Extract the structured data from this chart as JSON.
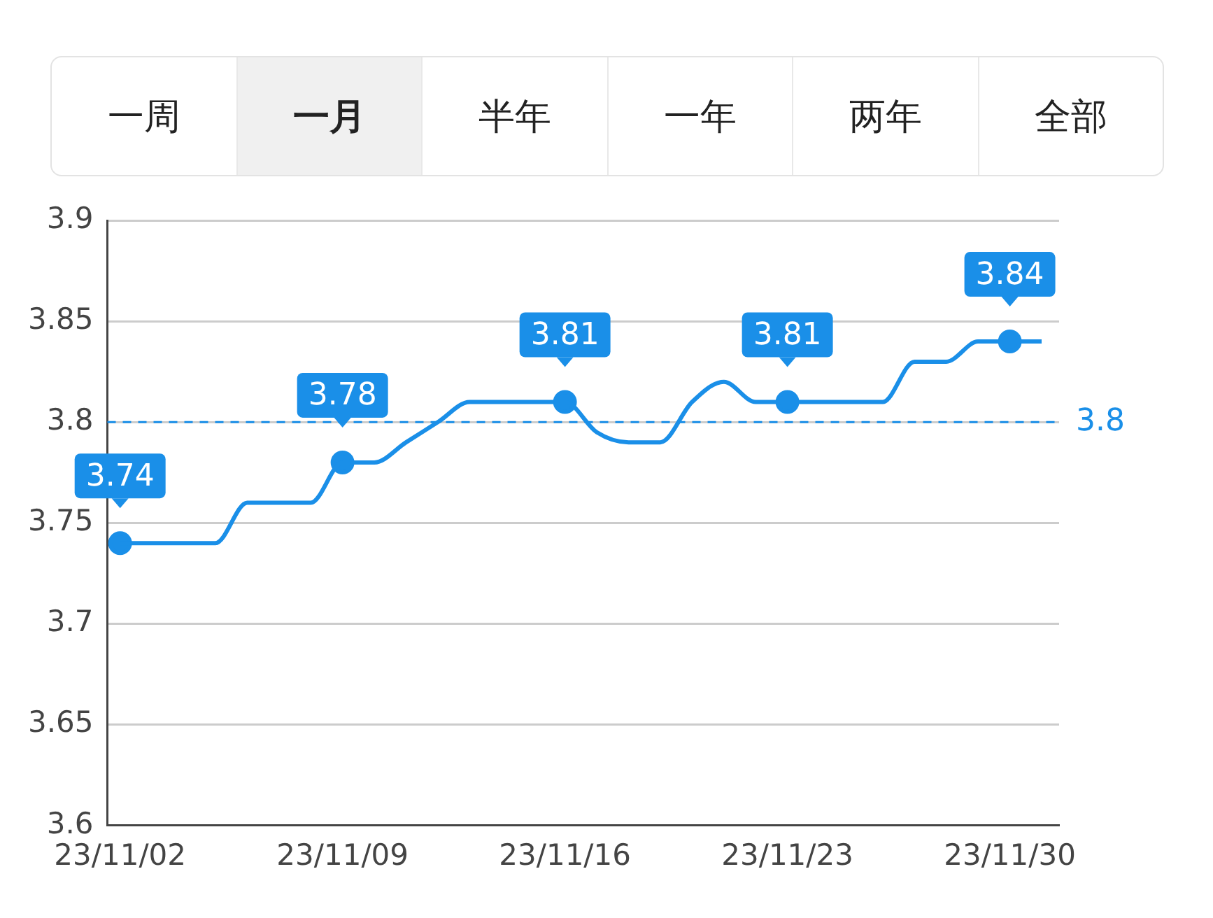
{
  "chart_data": {
    "type": "line",
    "categories": [
      "23/11/02",
      null,
      null,
      null,
      null,
      null,
      null,
      "23/11/09",
      null,
      null,
      null,
      null,
      null,
      null,
      "23/11/16",
      null,
      null,
      null,
      null,
      null,
      null,
      "23/11/23",
      null,
      null,
      null,
      null,
      null,
      null,
      "23/11/30",
      null
    ],
    "series": [
      {
        "color": "#1a8fe8",
        "values": [
          3.74,
          3.74,
          3.74,
          3.74,
          3.76,
          3.76,
          3.76,
          3.78,
          3.78,
          3.79,
          3.8,
          3.81,
          3.81,
          3.81,
          3.81,
          3.795,
          3.79,
          3.79,
          3.81,
          3.82,
          3.81,
          3.81,
          3.81,
          3.81,
          3.81,
          3.83,
          3.83,
          3.84,
          3.84,
          3.84
        ],
        "marker": "none"
      },
      {
        "type": "scatter",
        "color": "#1a8fe8",
        "marker": "circle",
        "x": [
          "23/11/02",
          "23/11/09",
          "23/11/16",
          "23/11/23",
          "23/11/30"
        ],
        "values": [
          3.74,
          3.78,
          3.81,
          3.81,
          3.84
        ],
        "value_labels": [
          "3.74",
          "3.78",
          "3.81",
          "3.81",
          "3.84"
        ]
      }
    ],
    "ylim": [
      3.6,
      3.9
    ],
    "yticks": [
      3.6,
      3.65,
      3.7,
      3.75,
      3.8,
      3.85,
      3.9
    ],
    "grid": "y",
    "legend": false,
    "ref_lines": [
      {
        "axis": "y",
        "value": 3.8,
        "label": "3.8",
        "color": "#1a8fe8",
        "line_style": "dashed"
      }
    ],
    "annotations": [
      "一周",
      "一月",
      "半年",
      "一年",
      "两年",
      "全部"
    ]
  }
}
